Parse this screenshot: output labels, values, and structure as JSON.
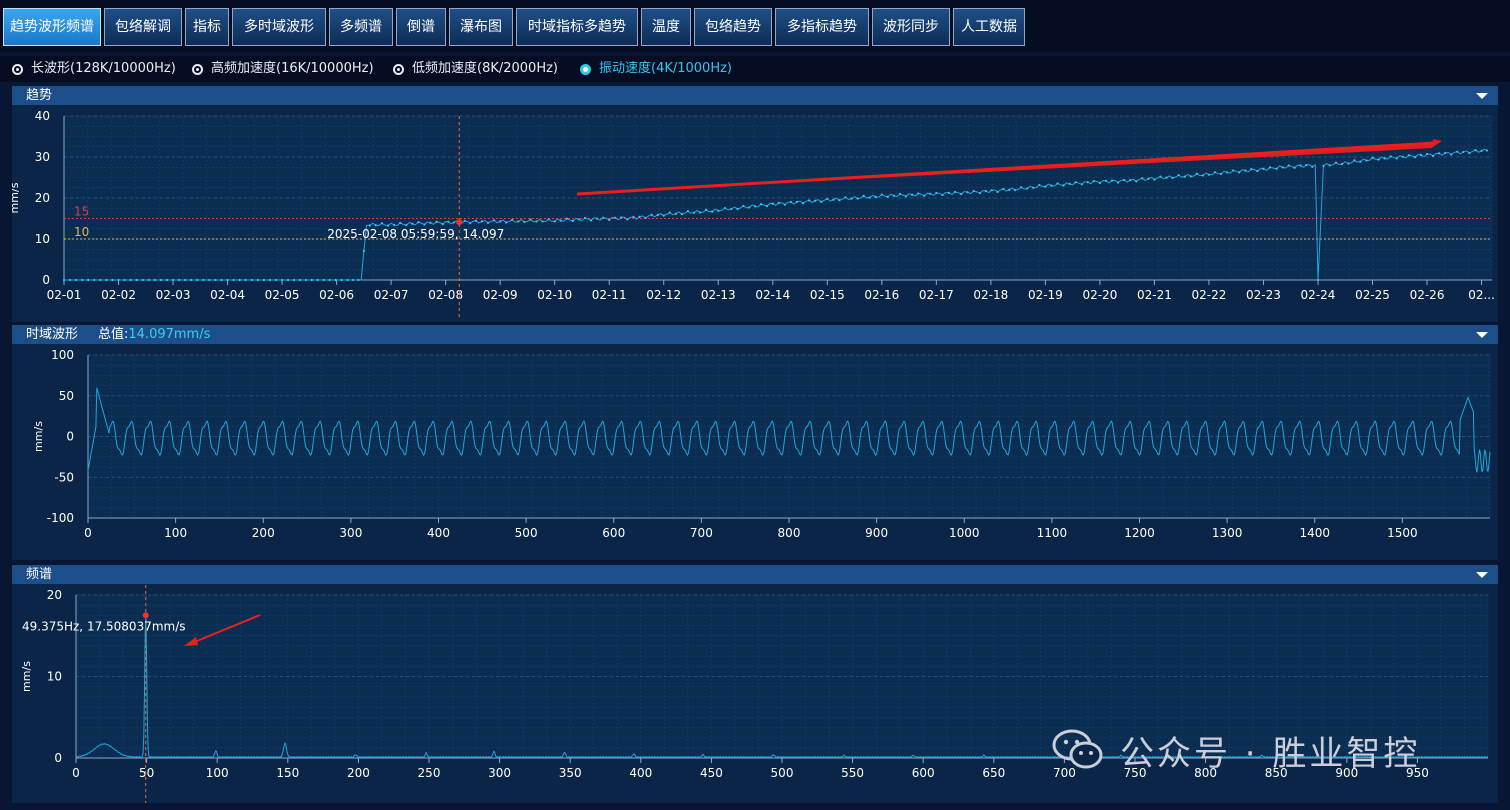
{
  "tabs": [
    {
      "label": "趋势波形频谱",
      "active": true
    },
    {
      "label": "包络解调"
    },
    {
      "label": "指标"
    },
    {
      "label": "多时域波形"
    },
    {
      "label": "多频谱"
    },
    {
      "label": "倒谱"
    },
    {
      "label": "瀑布图"
    },
    {
      "label": "时域指标多趋势"
    },
    {
      "label": "温度"
    },
    {
      "label": "包络趋势"
    },
    {
      "label": "多指标趋势"
    },
    {
      "label": "波形同步"
    },
    {
      "label": "人工数据"
    }
  ],
  "modes": [
    {
      "label": "长波形(128K/10000Hz)",
      "selected": false
    },
    {
      "label": "高频加速度(16K/10000Hz)",
      "selected": false
    },
    {
      "label": "低频加速度(8K/2000Hz)",
      "selected": false
    },
    {
      "label": "振动速度(4K/1000Hz)",
      "selected": true
    }
  ],
  "colors": {
    "line": "#1ea7d8",
    "alarm": "#e03c3c",
    "warning": "#e8b25a",
    "arrow": "#e8201e",
    "accent": "#39d0e8"
  },
  "watermark": "公众号 · 胜业智控",
  "chart_data": [
    {
      "type": "line",
      "title": "趋势",
      "ylabel": "mm/s",
      "ylim": [
        0,
        40
      ],
      "yticks": [
        0,
        10,
        20,
        30,
        40
      ],
      "xticks": [
        "02-01",
        "02-02",
        "02-03",
        "02-04",
        "02-05",
        "02-06",
        "02-07",
        "02-08",
        "02-09",
        "02-10",
        "02-11",
        "02-12",
        "02-13",
        "02-14",
        "02-15",
        "02-16",
        "02-17",
        "02-18",
        "02-19",
        "02-20",
        "02-21",
        "02-22",
        "02-23",
        "02-24",
        "02-25",
        "02-26",
        "02..."
      ],
      "xlim": [
        1,
        27.1
      ],
      "grid": true,
      "thresholds": [
        {
          "label": "15",
          "value": 15,
          "color": "#e03c3c"
        },
        {
          "label": "10",
          "value": 10,
          "color": "#e8b25a"
        }
      ],
      "cursor": {
        "x": 8.25,
        "y": 14.097,
        "label": "2025-02-08 05:59:59, 14.097"
      },
      "series": [
        {
          "x": [
            1,
            3,
            5,
            6.2,
            6.45,
            6.55,
            7,
            7.5,
            8,
            8.25,
            8.5,
            9,
            9.5,
            10,
            10.5,
            11,
            11.5,
            12,
            12.5,
            13,
            13.3,
            14,
            15,
            16,
            17,
            17.8,
            18.5,
            19,
            19.5,
            20,
            20.5,
            21,
            21.5,
            22,
            22.5,
            23,
            23.3,
            23.95,
            24,
            24.1,
            24.5,
            25,
            25.5,
            26,
            26.5,
            27,
            27.1
          ],
          "y": [
            0,
            0,
            0,
            0,
            0,
            13.5,
            13.5,
            13.8,
            14,
            14.1,
            14.2,
            14.3,
            14.4,
            14.5,
            14.8,
            15,
            15.2,
            16,
            16.5,
            17,
            17.5,
            18.5,
            19.5,
            20.5,
            21,
            21.5,
            22.2,
            23,
            23.5,
            24,
            24.2,
            24.8,
            25.3,
            25.8,
            26.5,
            27,
            27.5,
            28,
            0,
            28,
            28.5,
            29.5,
            30,
            30.5,
            31,
            31.5,
            31.6
          ]
        }
      ]
    },
    {
      "type": "line",
      "title": "时域波形",
      "total_label": "总值:",
      "total_value": "14.097mm/s",
      "ylabel": "mm/s",
      "ylim": [
        -100,
        100
      ],
      "yticks": [
        -100,
        -50,
        0,
        50,
        100
      ],
      "xlim": [
        0,
        1600
      ],
      "xticks": [
        0,
        100,
        200,
        300,
        400,
        500,
        600,
        700,
        800,
        900,
        1000,
        1100,
        1200,
        1300,
        1400,
        1500
      ],
      "grid": true,
      "waveform": {
        "amplitude": 20,
        "period": 21.5,
        "peaks": [
          {
            "x": 15,
            "y": 40
          },
          {
            "x": 1575,
            "y": 48
          }
        ],
        "troughs": [
          {
            "x": 5,
            "y": -42
          },
          {
            "x": 1590,
            "y": -45
          }
        ]
      }
    },
    {
      "type": "line",
      "title": "频谱",
      "ylabel": "mm/s",
      "ylim": [
        0,
        20
      ],
      "yticks": [
        0,
        10,
        20
      ],
      "xlim": [
        0,
        1000
      ],
      "xticks": [
        0,
        50,
        100,
        150,
        200,
        250,
        300,
        350,
        400,
        450,
        500,
        550,
        600,
        650,
        700,
        750,
        800,
        850,
        900,
        950
      ],
      "grid": true,
      "cursor": {
        "x": 49.375,
        "y": 17.508037,
        "label": "49.375Hz, 17.508037mm/s"
      },
      "peaks": [
        {
          "x": 20,
          "y": 1.6,
          "width": 10
        },
        {
          "x": 49.375,
          "y": 17.508,
          "width": 1
        },
        {
          "x": 99,
          "y": 0.8,
          "width": 1
        },
        {
          "x": 148,
          "y": 1.7,
          "width": 1.5
        },
        {
          "x": 198,
          "y": 0.3,
          "width": 1
        },
        {
          "x": 248,
          "y": 0.5,
          "width": 1
        },
        {
          "x": 296,
          "y": 0.7,
          "width": 1
        },
        {
          "x": 346,
          "y": 0.6,
          "width": 1
        },
        {
          "x": 395,
          "y": 0.4,
          "width": 1
        },
        {
          "x": 444,
          "y": 0.3,
          "width": 1
        },
        {
          "x": 494,
          "y": 0.3,
          "width": 1
        },
        {
          "x": 544,
          "y": 0.2,
          "width": 1
        },
        {
          "x": 593,
          "y": 0.2,
          "width": 1
        },
        {
          "x": 643,
          "y": 0.2,
          "width": 1
        },
        {
          "x": 740,
          "y": 0.2,
          "width": 1
        },
        {
          "x": 840,
          "y": 0.2,
          "width": 1
        }
      ]
    }
  ]
}
